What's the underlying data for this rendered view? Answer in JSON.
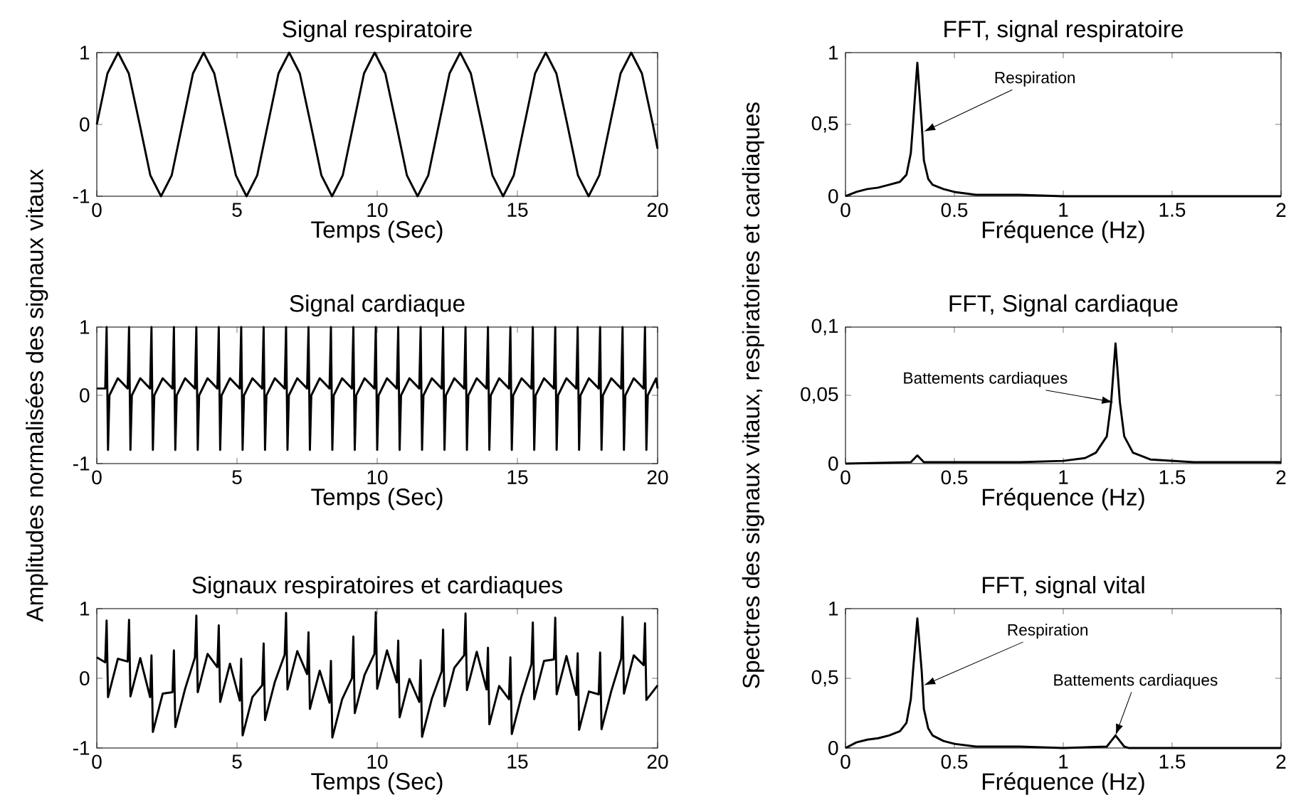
{
  "chart_data": [
    {
      "type": "line",
      "title": "Signal respiratoire",
      "xlabel": "Temps (Sec)",
      "color": "#000000",
      "xlim": [
        0,
        20
      ],
      "ylim": [
        -1,
        1
      ],
      "xticks": [
        0,
        5,
        10,
        15,
        20
      ],
      "yticks": [
        -1,
        0,
        1
      ],
      "x": [
        0,
        0.38,
        0.76,
        1.14,
        1.53,
        1.91,
        2.29,
        2.67,
        3.05,
        3.43,
        3.81,
        4.19,
        4.58,
        4.96,
        5.34,
        5.72,
        6.1,
        6.48,
        6.86,
        7.24,
        7.63,
        8.01,
        8.39,
        8.77,
        9.15,
        9.53,
        9.91,
        10.29,
        10.68,
        11.06,
        11.44,
        11.82,
        12.2,
        12.58,
        12.96,
        13.34,
        13.73,
        14.11,
        14.49,
        14.87,
        15.25,
        15.63,
        16.01,
        16.39,
        16.78,
        17.16,
        17.54,
        17.92,
        18.3,
        18.68,
        19.06,
        19.44,
        19.83,
        20
      ],
      "values": [
        0,
        0.71,
        1,
        0.71,
        0,
        -0.71,
        -1,
        -0.71,
        0,
        0.71,
        1,
        0.71,
        0,
        -0.71,
        -1,
        -0.71,
        0,
        0.71,
        1,
        0.71,
        0,
        -0.71,
        -1,
        -0.71,
        0,
        0.71,
        1,
        0.71,
        0,
        -0.71,
        -1,
        -0.71,
        0,
        0.71,
        1,
        0.71,
        0,
        -0.71,
        -1,
        -0.71,
        0,
        0.71,
        1,
        0.71,
        0,
        -0.71,
        -1,
        -0.71,
        0,
        0.71,
        1,
        0.71,
        0,
        -0.34
      ]
    },
    {
      "type": "line",
      "title": "FFT, signal respiratoire",
      "xlabel": "Fréquence (Hz)",
      "color": "#000000",
      "xlim": [
        0,
        2
      ],
      "ylim": [
        0,
        1
      ],
      "xticks": [
        0,
        0.5,
        1,
        1.5,
        2
      ],
      "yticks": [
        0,
        {
          "value": 0.5,
          "label": "0,5"
        },
        1
      ],
      "x": [
        0,
        0.05,
        0.1,
        0.15,
        0.2,
        0.25,
        0.28,
        0.3,
        0.31,
        0.33,
        0.35,
        0.36,
        0.38,
        0.4,
        0.45,
        0.5,
        0.6,
        0.8,
        1,
        1.5,
        2
      ],
      "values": [
        0,
        0.03,
        0.05,
        0.06,
        0.08,
        0.1,
        0.15,
        0.3,
        0.5,
        0.93,
        0.5,
        0.25,
        0.12,
        0.08,
        0.05,
        0.03,
        0.01,
        0.01,
        0,
        0,
        0
      ],
      "annotations": [
        {
          "text": "Respiration",
          "x": 0.36,
          "y": 0.45
        }
      ]
    },
    {
      "type": "line",
      "title": "Signal cardiaque",
      "xlabel": "Temps (Sec)",
      "ylabel": "Amplitudes normalisées des signaux vitaux",
      "color": "#000000",
      "xlim": [
        0,
        20
      ],
      "ylim": [
        -1,
        1
      ],
      "xticks": [
        0,
        5,
        10,
        15,
        20
      ],
      "yticks": [
        -1,
        0,
        1
      ],
      "x": [
        0,
        0.3,
        0.35,
        0.4,
        0.45,
        0.75,
        1.1,
        1.15,
        1.2,
        1.25,
        1.55,
        1.9,
        1.95,
        2,
        2.05,
        2.35,
        2.7,
        2.75,
        2.8,
        2.85,
        3.15,
        3.5,
        3.55,
        3.6,
        3.65,
        3.95,
        4.3,
        4.35,
        4.4,
        4.45,
        4.75,
        5.1,
        5.15,
        5.2,
        5.25,
        5.55,
        5.9,
        5.95,
        6,
        6.05,
        6.35,
        6.7,
        6.75,
        6.8,
        6.85,
        7.15,
        7.5,
        7.55,
        7.6,
        7.65,
        7.95,
        8.3,
        8.35,
        8.4,
        8.45,
        8.75,
        9.1,
        9.15,
        9.2,
        9.25,
        9.55,
        9.9,
        9.95,
        10,
        10.05,
        10.35,
        10.7,
        10.75,
        10.8,
        10.85,
        11.15,
        11.5,
        11.55,
        11.6,
        11.65,
        11.95,
        12.3,
        12.35,
        12.4,
        12.45,
        12.75,
        13.1,
        13.15,
        13.2,
        13.25,
        13.55,
        13.9,
        13.95,
        14,
        14.05,
        14.35,
        14.7,
        14.75,
        14.8,
        14.85,
        15.15,
        15.5,
        15.55,
        15.6,
        15.65,
        15.95,
        16.3,
        16.35,
        16.4,
        16.45,
        16.75,
        17.1,
        17.15,
        17.2,
        17.25,
        17.55,
        17.9,
        17.95,
        18,
        18.05,
        18.35,
        18.7,
        18.75,
        18.8,
        18.85,
        19.15,
        19.5,
        19.55,
        19.6,
        19.65,
        19.95,
        20
      ],
      "values": [
        0.1,
        0.1,
        1,
        -0.8,
        0,
        0.25,
        0.1,
        1,
        -0.8,
        0,
        0.25,
        0.1,
        1,
        -0.8,
        0,
        0.25,
        0.1,
        1,
        -0.8,
        0,
        0.25,
        0.1,
        1,
        -0.8,
        0,
        0.25,
        0.1,
        1,
        -0.8,
        0,
        0.25,
        0.1,
        1,
        -0.8,
        0,
        0.25,
        0.1,
        1,
        -0.8,
        0,
        0.25,
        0.1,
        1,
        -0.8,
        0,
        0.25,
        0.1,
        1,
        -0.8,
        0,
        0.25,
        0.1,
        1,
        -0.8,
        0,
        0.25,
        0.1,
        1,
        -0.8,
        0,
        0.25,
        0.1,
        1,
        -0.8,
        0,
        0.25,
        0.1,
        1,
        -0.8,
        0,
        0.25,
        0.1,
        1,
        -0.8,
        0,
        0.25,
        0.1,
        1,
        -0.8,
        0,
        0.25,
        0.1,
        1,
        -0.8,
        0,
        0.25,
        0.1,
        1,
        -0.8,
        0,
        0.25,
        0.1,
        1,
        -0.8,
        0,
        0.25,
        0.1,
        1,
        -0.8,
        0,
        0.25,
        0.1,
        1,
        -0.8,
        0,
        0.25,
        0.1,
        1,
        -0.8,
        0,
        0.25,
        0.1,
        1,
        -0.8,
        0,
        0.25,
        0.1,
        1,
        -0.8,
        0,
        0.25,
        0.1,
        1,
        -0.8,
        0,
        0.25,
        0.1
      ]
    },
    {
      "type": "line",
      "title": "FFT, Signal cardiaque",
      "xlabel": "Fréquence (Hz)",
      "ylabel": "Spectres des signaux vitaux, respiratoires et cardiaques",
      "color": "#000000",
      "xlim": [
        0,
        2
      ],
      "ylim": [
        0,
        0.1
      ],
      "xticks": [
        0,
        0.5,
        1,
        1.5,
        2
      ],
      "yticks": [
        0,
        {
          "value": 0.05,
          "label": "0,05"
        },
        {
          "value": 0.1,
          "label": "0,1"
        }
      ],
      "x": [
        0,
        0.3,
        0.33,
        0.36,
        0.5,
        0.8,
        1,
        1.1,
        1.15,
        1.2,
        1.22,
        1.24,
        1.26,
        1.28,
        1.32,
        1.4,
        1.6,
        2
      ],
      "values": [
        0,
        0.001,
        0.006,
        0.001,
        0.001,
        0.001,
        0.002,
        0.004,
        0.008,
        0.02,
        0.045,
        0.088,
        0.045,
        0.02,
        0.008,
        0.003,
        0.001,
        0.001
      ],
      "annotations": [
        {
          "text": "Battements cardiaques",
          "x": 1.23,
          "y": 0.045
        }
      ]
    },
    {
      "type": "line",
      "title": "Signaux respiratoires et cardiaques",
      "xlabel": "Temps (Sec)",
      "color": "#000000",
      "xlim": [
        0,
        20
      ],
      "ylim": [
        -1,
        1
      ],
      "xticks": [
        0,
        5,
        10,
        15,
        20
      ],
      "yticks": [
        -1,
        0,
        1
      ],
      "x": [
        0,
        0.3,
        0.35,
        0.4,
        0.75,
        1.1,
        1.15,
        1.2,
        1.55,
        1.9,
        1.95,
        2,
        2.35,
        2.7,
        2.75,
        2.8,
        3.15,
        3.5,
        3.55,
        3.6,
        3.95,
        4.3,
        4.35,
        4.4,
        4.75,
        5.1,
        5.15,
        5.2,
        5.55,
        5.9,
        5.95,
        6,
        6.35,
        6.7,
        6.75,
        6.8,
        7.15,
        7.5,
        7.55,
        7.6,
        7.95,
        8.3,
        8.35,
        8.4,
        8.75,
        9.1,
        9.15,
        9.2,
        9.55,
        9.9,
        9.95,
        10,
        10.35,
        10.7,
        10.75,
        10.8,
        11.15,
        11.5,
        11.55,
        11.6,
        11.95,
        12.3,
        12.35,
        12.4,
        12.75,
        13.1,
        13.15,
        13.2,
        13.55,
        13.9,
        13.95,
        14,
        14.35,
        14.7,
        14.75,
        14.8,
        15.15,
        15.5,
        15.55,
        15.6,
        15.95,
        16.3,
        16.35,
        16.4,
        16.75,
        17.1,
        17.15,
        17.2,
        17.55,
        17.9,
        17.95,
        18,
        18.35,
        18.7,
        18.75,
        18.8,
        19.15,
        19.5,
        19.55,
        19.6,
        20
      ],
      "values": [
        0.3,
        0.23,
        0.83,
        -0.27,
        0.28,
        0.24,
        0.84,
        -0.26,
        0.29,
        -0.27,
        0.33,
        -0.77,
        -0.22,
        -0.2,
        0.4,
        -0.7,
        -0.15,
        0.3,
        0.9,
        -0.2,
        0.35,
        0.16,
        0.76,
        -0.34,
        0.21,
        -0.32,
        0.28,
        -0.82,
        -0.27,
        -0.1,
        0.5,
        -0.6,
        -0.05,
        0.34,
        0.94,
        -0.16,
        0.39,
        0.06,
        0.66,
        -0.44,
        0.11,
        -0.35,
        0.25,
        -0.85,
        -0.3,
        0,
        0.6,
        -0.5,
        0.05,
        0.35,
        0.95,
        -0.15,
        0.4,
        -0.06,
        0.54,
        -0.56,
        -0.01,
        -0.34,
        0.26,
        -0.84,
        -0.29,
        0.1,
        0.7,
        -0.4,
        0.15,
        0.33,
        0.93,
        -0.17,
        0.38,
        -0.16,
        0.44,
        -0.66,
        -0.11,
        -0.3,
        0.3,
        -0.8,
        -0.25,
        0.2,
        0.8,
        -0.3,
        0.25,
        0.27,
        0.87,
        -0.23,
        0.32,
        -0.24,
        0.36,
        -0.74,
        -0.19,
        -0.23,
        0.37,
        -0.73,
        -0.18,
        0.28,
        0.88,
        -0.22,
        0.33,
        0.19,
        0.79,
        -0.31,
        -0.1
      ]
    },
    {
      "type": "line",
      "title": "FFT, signal vital",
      "xlabel": "Fréquence (Hz)",
      "color": "#000000",
      "xlim": [
        0,
        2
      ],
      "ylim": [
        0,
        1
      ],
      "xticks": [
        0,
        0.5,
        1,
        1.5,
        2
      ],
      "yticks": [
        0,
        {
          "value": 0.5,
          "label": "0,5"
        },
        1
      ],
      "x": [
        0,
        0.05,
        0.1,
        0.15,
        0.2,
        0.25,
        0.28,
        0.3,
        0.31,
        0.33,
        0.35,
        0.36,
        0.38,
        0.4,
        0.45,
        0.5,
        0.6,
        0.8,
        1,
        1.2,
        1.22,
        1.24,
        1.26,
        1.28,
        1.3,
        1.5,
        2
      ],
      "values": [
        0,
        0.04,
        0.06,
        0.07,
        0.09,
        0.12,
        0.18,
        0.35,
        0.55,
        0.93,
        0.55,
        0.28,
        0.14,
        0.09,
        0.05,
        0.03,
        0.01,
        0.01,
        0,
        0.01,
        0.05,
        0.09,
        0.05,
        0.01,
        0,
        0,
        0
      ],
      "annotations": [
        {
          "text": "Respiration",
          "x": 0.36,
          "y": 0.45
        },
        {
          "text": "Battements cardiaques",
          "x": 1.24,
          "y": 0.09
        }
      ]
    }
  ]
}
